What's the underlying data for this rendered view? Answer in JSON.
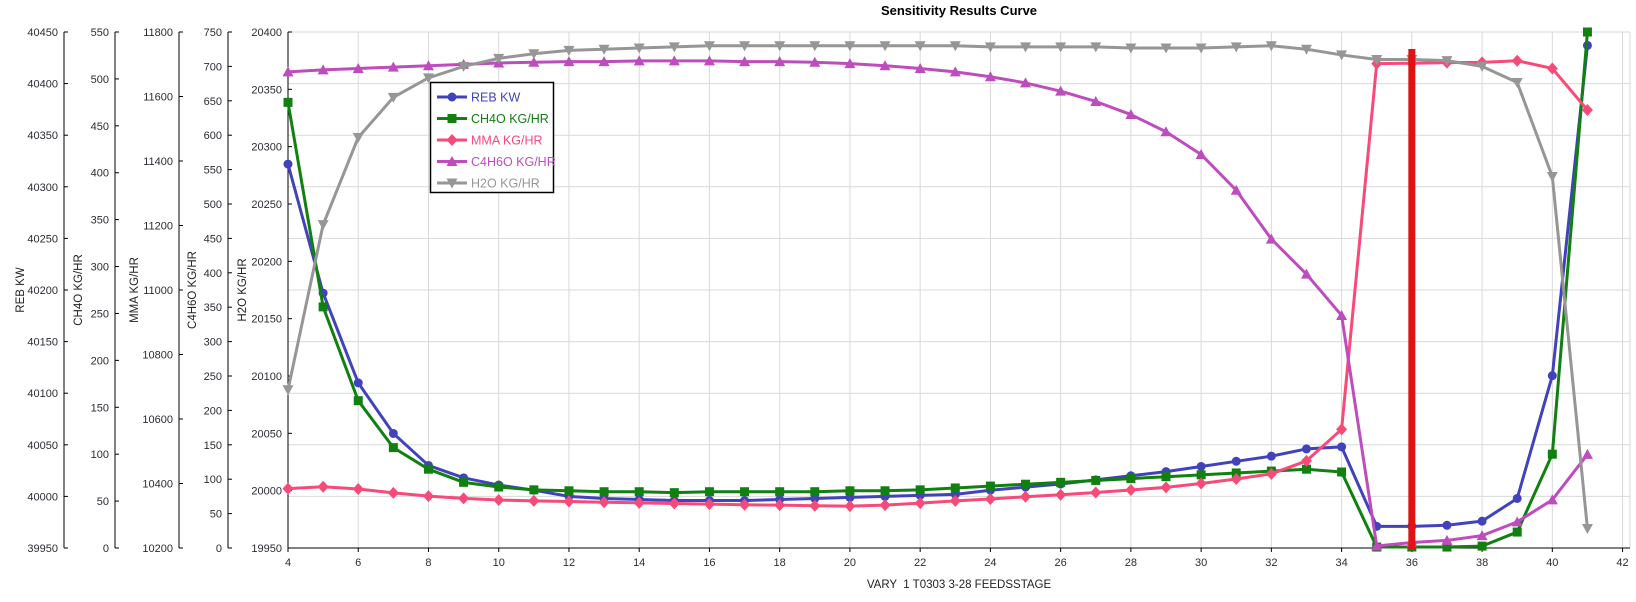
{
  "chart_data": {
    "type": "line",
    "title": "Sensitivity Results Curve",
    "xlabel": "VARY  1 T0303 3-28 FEEDSSTAGE",
    "x": [
      4,
      5,
      6,
      7,
      8,
      9,
      10,
      11,
      12,
      13,
      14,
      15,
      16,
      17,
      18,
      19,
      20,
      21,
      22,
      23,
      24,
      25,
      26,
      27,
      28,
      29,
      30,
      31,
      32,
      33,
      34,
      35,
      36,
      37,
      38,
      39,
      40,
      41
    ],
    "x_ticks": [
      4,
      6,
      8,
      10,
      12,
      14,
      16,
      18,
      20,
      22,
      24,
      26,
      28,
      30,
      32,
      34,
      36,
      38,
      40,
      42
    ],
    "x_range": [
      4,
      42
    ],
    "grid": true,
    "grid_color": "#d9d9d9",
    "axis_text_color": "#2b2b33",
    "axes": [
      {
        "id": "reb",
        "label": "REB KW",
        "min": 39950,
        "max": 40450,
        "tick_step": 50
      },
      {
        "id": "ch4o",
        "label": "CH4O KG/HR",
        "min": 0,
        "max": 550,
        "tick_step": 50
      },
      {
        "id": "mma",
        "label": "MMA KG/HR",
        "min": 10200,
        "max": 11800,
        "tick_step": 200
      },
      {
        "id": "c4h6o",
        "label": "C4H6O KG/HR",
        "min": 0,
        "max": 750,
        "tick_step": 50
      },
      {
        "id": "h2o",
        "label": "H2O KG/HR",
        "min": 19950,
        "max": 20400,
        "tick_step": 50
      }
    ],
    "series": [
      {
        "name": "REB KW",
        "axis": "reb",
        "color": "#4242bd",
        "marker": "circle",
        "values": [
          40322,
          40197,
          40110,
          40061,
          40030,
          40018,
          40011,
          40006,
          40000,
          39998,
          39997,
          39996,
          39996,
          39996,
          39997,
          39998,
          39999,
          40000,
          40001,
          40002,
          40006,
          40009,
          40012,
          40016,
          40020,
          40024,
          40029,
          40034,
          40039,
          40046,
          40048,
          39971,
          39971,
          39972,
          39976,
          39998,
          40117,
          40437
        ]
      },
      {
        "name": "CH4O KG/HR",
        "axis": "ch4o",
        "color": "#108010",
        "marker": "square",
        "values": [
          475,
          257,
          157,
          107,
          84,
          70,
          65,
          62,
          61,
          60,
          60,
          59,
          60,
          60,
          60,
          60,
          61,
          61,
          62,
          64,
          66,
          68,
          70,
          72,
          74,
          76,
          78,
          80,
          82,
          84,
          81,
          1,
          1,
          1,
          2,
          17,
          100,
          550
        ]
      },
      {
        "name": "MMA KG/HR",
        "axis": "mma",
        "color": "#f84a78",
        "marker": "diamond",
        "values": [
          10384,
          10390,
          10383,
          10371,
          10361,
          10354,
          10349,
          10346,
          10344,
          10342,
          10340,
          10338,
          10336,
          10334,
          10333,
          10331,
          10330,
          10333,
          10339,
          10346,
          10352,
          10359,
          10365,
          10372,
          10380,
          10388,
          10400,
          10414,
          10430,
          10470,
          10568,
          11702,
          11703,
          11705,
          11706,
          11711,
          11687,
          11558
        ]
      },
      {
        "name": "C4H6O KG/HR",
        "axis": "c4h6o",
        "color": "#bf4cbf",
        "marker": "triangle-up",
        "values": [
          692,
          695,
          697,
          699,
          701,
          703,
          705,
          706,
          707,
          707,
          708,
          708,
          708,
          707,
          707,
          706,
          704,
          701,
          697,
          692,
          685,
          676,
          664,
          649,
          630,
          605,
          572,
          520,
          449,
          398,
          338,
          3,
          8,
          11,
          18,
          38,
          70,
          136
        ]
      },
      {
        "name": "H2O KG/HR",
        "axis": "h2o",
        "color": "#969696",
        "marker": "triangle-down",
        "values": [
          20088,
          20232,
          20308,
          20343,
          20360,
          20370,
          20377,
          20381,
          20384,
          20385,
          20386,
          20387,
          20388,
          20388,
          20388,
          20388,
          20388,
          20388,
          20388,
          20388,
          20387,
          20387,
          20387,
          20387,
          20386,
          20386,
          20386,
          20387,
          20388,
          20385,
          20380,
          20376,
          20376,
          20375,
          20370,
          20356,
          20274,
          19967
        ]
      }
    ],
    "reference_line": {
      "x": 36,
      "color": "#e11212"
    },
    "legend": {
      "position": "top-left-inside",
      "entries": [
        "REB KW",
        "CH4O KG/HR",
        "MMA KG/HR",
        "C4H6O KG/HR",
        "H2O KG/HR"
      ]
    }
  }
}
